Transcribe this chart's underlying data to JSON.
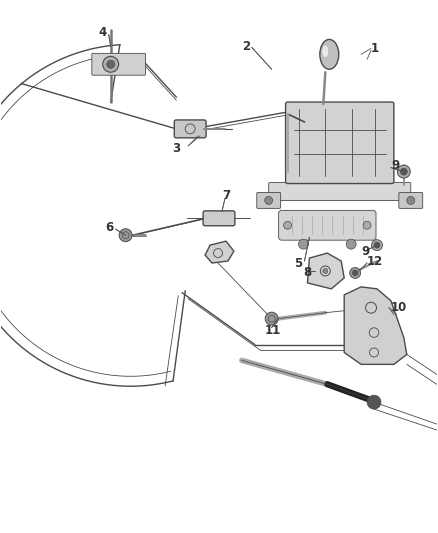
{
  "bg_color": "#ffffff",
  "line_color": "#4a4a4a",
  "dark_color": "#1a1a1a",
  "label_color": "#333333",
  "fig_width": 4.38,
  "fig_height": 5.33,
  "dpi": 100
}
